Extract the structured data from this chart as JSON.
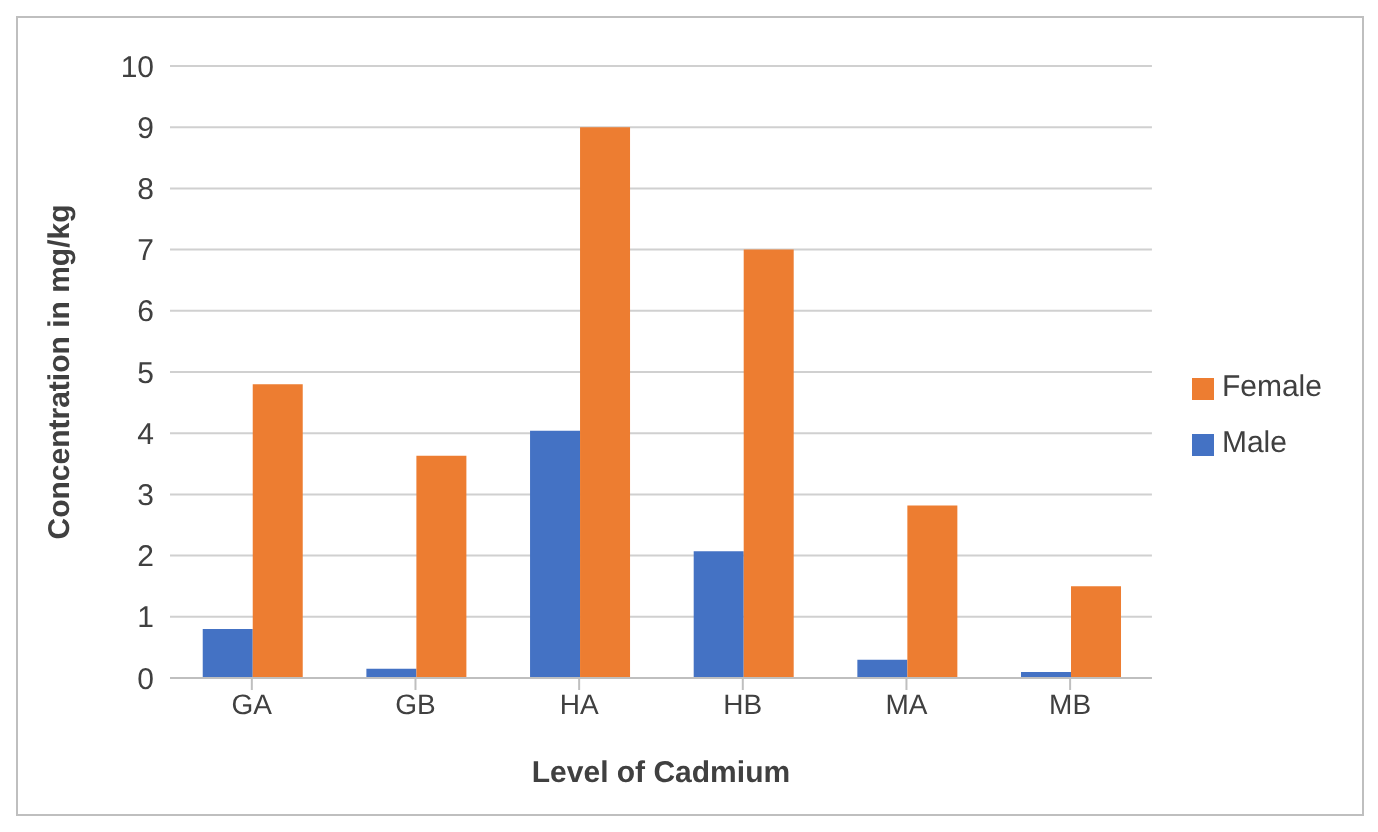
{
  "chart_data": {
    "type": "bar",
    "xlabel": "Level of Cadmium",
    "ylabel": "Concentration in mg/kg",
    "categories": [
      "GA",
      "GB",
      "HA",
      "HB",
      "MA",
      "MB"
    ],
    "series": [
      {
        "name": "Male",
        "color": "#4472c4",
        "values": [
          0.8,
          0.15,
          4.04,
          2.07,
          0.3,
          0.1
        ]
      },
      {
        "name": "Female",
        "color": "#ed7d31",
        "values": [
          4.8,
          3.63,
          9.0,
          7.0,
          2.82,
          1.5
        ]
      }
    ],
    "ylim": [
      0,
      10
    ],
    "yticks": [
      0,
      1,
      2,
      3,
      4,
      5,
      6,
      7,
      8,
      9,
      10
    ],
    "grid": "y",
    "legend": "right"
  }
}
